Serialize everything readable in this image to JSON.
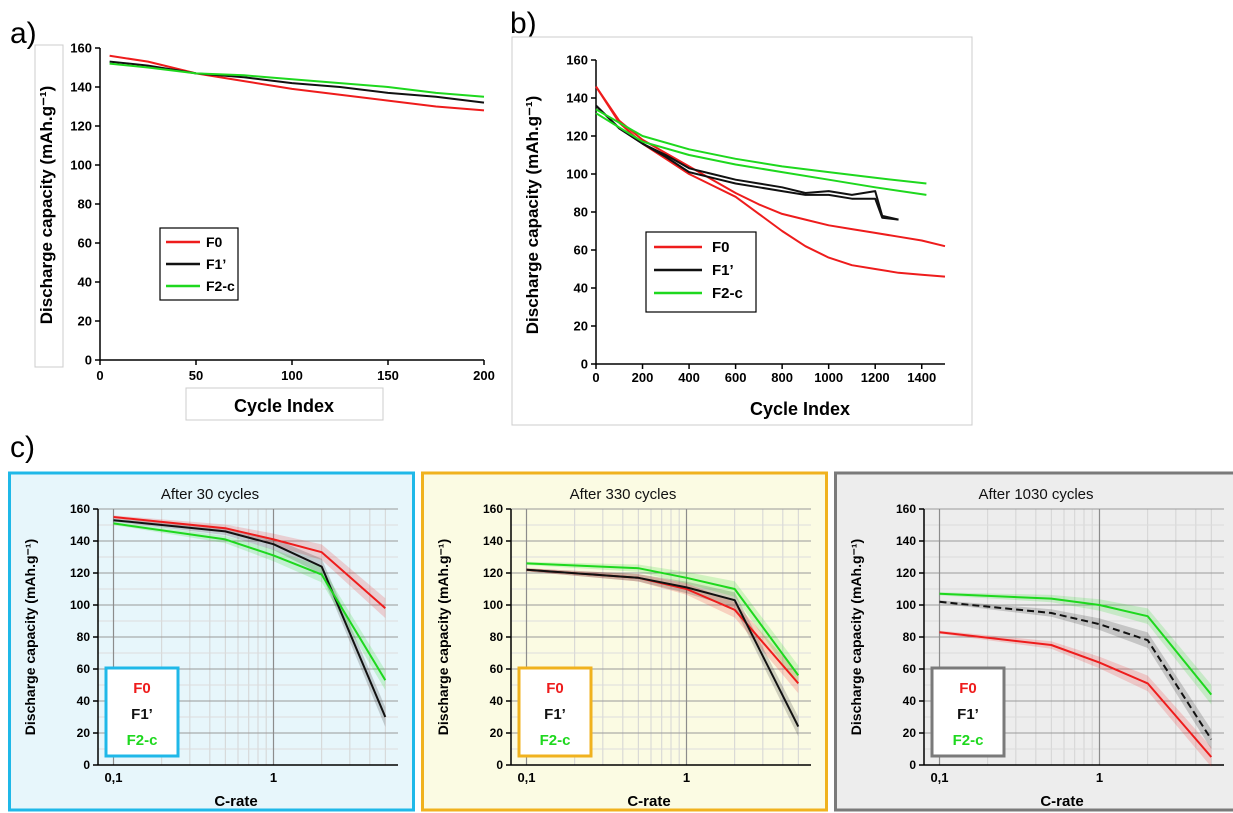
{
  "figure_labels": {
    "a": "a)",
    "b": "b)",
    "c": "c)"
  },
  "colors": {
    "F0": "#ee1c1c",
    "F1": "#111111",
    "F2": "#1ed81e",
    "frame_c1": "#1fb8e8",
    "frame_c2": "#f0b21e",
    "frame_c3": "#7a7a7a",
    "bg_c1": "#e7f6fb",
    "bg_c2": "#fbfbe3",
    "bg_c3": "#ededed"
  },
  "chart_data": [
    {
      "id": "a",
      "type": "line",
      "xlabel": "Cycle Index",
      "ylabel": "Discharge capacity (mAh.g⁻¹)",
      "xlim": [
        0,
        200
      ],
      "ylim": [
        0,
        160
      ],
      "xticks": [
        "0",
        "50",
        "100",
        "150",
        "200"
      ],
      "yticks": [
        "0",
        "20",
        "40",
        "60",
        "80",
        "100",
        "120",
        "140",
        "160"
      ],
      "legend": "center-left",
      "series": [
        {
          "name": "F0",
          "x": [
            5,
            25,
            50,
            75,
            100,
            125,
            150,
            175,
            200
          ],
          "y": [
            156,
            153,
            147,
            143,
            139,
            136,
            133,
            130,
            128
          ]
        },
        {
          "name": "F1’",
          "x": [
            5,
            25,
            50,
            75,
            100,
            125,
            150,
            175,
            200
          ],
          "y": [
            153,
            151,
            147,
            145,
            142,
            140,
            137,
            135,
            132
          ]
        },
        {
          "name": "F2-c",
          "x": [
            5,
            25,
            50,
            75,
            100,
            125,
            150,
            175,
            200
          ],
          "y": [
            152,
            150,
            147,
            146,
            144,
            142,
            140,
            137,
            135
          ]
        }
      ]
    },
    {
      "id": "b",
      "type": "line",
      "xlabel": "Cycle Index",
      "ylabel": "Discharge capacity (mAh.g⁻¹)",
      "xlim": [
        0,
        1500
      ],
      "ylim": [
        0,
        160
      ],
      "xticks": [
        "0",
        "200",
        "400",
        "600",
        "800",
        "1000",
        "1200",
        "1400"
      ],
      "yticks": [
        "0",
        "20",
        "40",
        "60",
        "80",
        "100",
        "120",
        "140",
        "160"
      ],
      "legend": "center-left",
      "series": [
        {
          "name": "F0",
          "x": [
            0,
            100,
            200,
            300,
            400,
            500,
            600,
            700,
            800,
            900,
            1000,
            1100,
            1200,
            1300,
            1400,
            1500
          ],
          "y": [
            146,
            128,
            118,
            111,
            104,
            97,
            90,
            84,
            79,
            76,
            73,
            71,
            69,
            67,
            65,
            62
          ]
        },
        {
          "name": "F0",
          "x": [
            0,
            100,
            200,
            300,
            400,
            500,
            600,
            700,
            800,
            900,
            1000,
            1100,
            1200,
            1300,
            1400,
            1500
          ],
          "y": [
            146,
            127,
            116,
            108,
            100,
            94,
            88,
            79,
            70,
            62,
            56,
            52,
            50,
            48,
            47,
            46
          ]
        },
        {
          "name": "F1’",
          "x": [
            0,
            100,
            200,
            300,
            400,
            500,
            600,
            700,
            800,
            900,
            1000,
            1100,
            1200,
            1230,
            1300
          ],
          "y": [
            136,
            124,
            116,
            110,
            103,
            100,
            97,
            95,
            93,
            90,
            91,
            89,
            91,
            78,
            76
          ]
        },
        {
          "name": "F1’",
          "x": [
            0,
            100,
            200,
            300,
            400,
            500,
            600,
            700,
            800,
            900,
            1000,
            1100,
            1200,
            1230,
            1300
          ],
          "y": [
            136,
            124,
            116,
            109,
            101,
            98,
            95,
            93,
            91,
            89,
            89,
            87,
            87,
            77,
            76
          ]
        },
        {
          "name": "F2-c",
          "x": [
            0,
            200,
            400,
            600,
            800,
            1000,
            1200,
            1420
          ],
          "y": [
            134,
            120,
            113,
            108,
            104,
            101,
            98,
            95
          ]
        },
        {
          "name": "F2-c",
          "x": [
            0,
            200,
            400,
            600,
            800,
            1000,
            1200,
            1420
          ],
          "y": [
            132,
            117,
            110,
            105,
            101,
            97,
            93,
            89
          ]
        }
      ]
    },
    {
      "id": "c1",
      "type": "line",
      "title": "After 30 cycles",
      "xlabel": "C-rate",
      "ylabel": "Discharge capacity (mAh.g⁻¹)",
      "xscale": "log",
      "xlim": [
        0.08,
        6
      ],
      "ylim": [
        0,
        160
      ],
      "xticks": [
        "0,1",
        "1"
      ],
      "yticks": [
        "0",
        "20",
        "40",
        "60",
        "80",
        "100",
        "120",
        "140",
        "160"
      ],
      "legend": "bottom-left",
      "series": [
        {
          "name": "F0",
          "x": [
            0.1,
            0.5,
            1,
            2,
            5
          ],
          "y": [
            155,
            148,
            141,
            133,
            98
          ]
        },
        {
          "name": "F1’",
          "x": [
            0.1,
            0.5,
            1,
            2,
            5
          ],
          "y": [
            153,
            146,
            138,
            124,
            30
          ]
        },
        {
          "name": "F2-c",
          "x": [
            0.1,
            0.5,
            1,
            2,
            5
          ],
          "y": [
            151,
            141,
            131,
            119,
            53
          ]
        }
      ]
    },
    {
      "id": "c2",
      "type": "line",
      "title": "After 330 cycles",
      "xlabel": "C-rate",
      "ylabel": "Discharge capacity (mAh.g⁻¹)",
      "xscale": "log",
      "xlim": [
        0.08,
        6
      ],
      "ylim": [
        0,
        160
      ],
      "xticks": [
        "0,1",
        "1"
      ],
      "yticks": [
        "0",
        "20",
        "40",
        "60",
        "80",
        "100",
        "120",
        "140",
        "160"
      ],
      "legend": "bottom-left",
      "series": [
        {
          "name": "F0",
          "x": [
            0.1,
            0.5,
            1,
            2,
            5
          ],
          "y": [
            122,
            117,
            110,
            97,
            51
          ]
        },
        {
          "name": "F1’",
          "x": [
            0.1,
            0.5,
            1,
            2,
            5
          ],
          "y": [
            122,
            117,
            111,
            103,
            24
          ]
        },
        {
          "name": "F2-c",
          "x": [
            0.1,
            0.5,
            1,
            2,
            5
          ],
          "y": [
            126,
            123,
            117,
            110,
            56
          ]
        }
      ]
    },
    {
      "id": "c3",
      "type": "line",
      "title": "After 1030 cycles",
      "xlabel": "C-rate",
      "ylabel": "Discharge capacity (mAh.g⁻¹)",
      "xscale": "log",
      "xlim": [
        0.08,
        6
      ],
      "ylim": [
        0,
        160
      ],
      "xticks": [
        "0,1",
        "1"
      ],
      "yticks": [
        "0",
        "20",
        "40",
        "60",
        "80",
        "100",
        "120",
        "140",
        "160"
      ],
      "legend": "bottom-left",
      "series": [
        {
          "name": "F0",
          "x": [
            0.1,
            0.5,
            1,
            2,
            5
          ],
          "y": [
            83,
            75,
            64,
            51,
            5
          ]
        },
        {
          "name": "F1’",
          "x": [
            0.1,
            0.5,
            1,
            2,
            5
          ],
          "y": [
            102,
            95,
            88,
            78,
            16
          ]
        },
        {
          "name": "F2-c",
          "x": [
            0.1,
            0.5,
            1,
            2,
            5
          ],
          "y": [
            107,
            104,
            100,
            93,
            44
          ]
        }
      ]
    }
  ]
}
